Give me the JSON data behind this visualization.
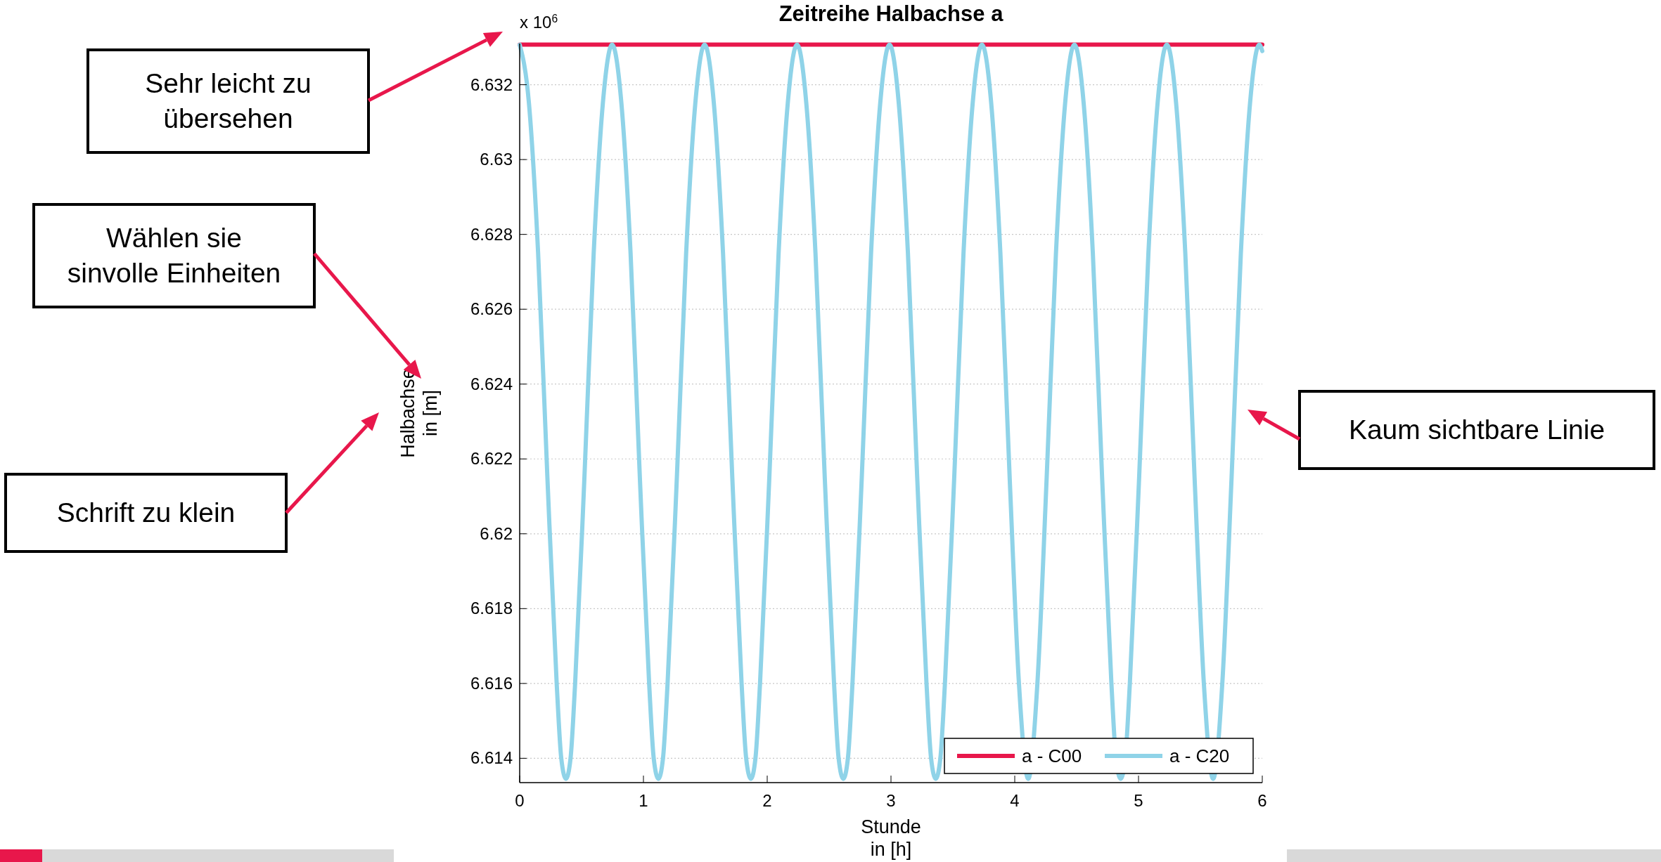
{
  "chart_data": {
    "type": "line",
    "title": "Zeitreihe Halbachse a",
    "xlabel": "Stunde\nin [h]",
    "ylabel": "Halbachse\nin [m]",
    "xlim": [
      0,
      6
    ],
    "xticks": [
      0,
      1,
      2,
      3,
      4,
      5,
      6
    ],
    "ylim": [
      6.61335,
      6.6331
    ],
    "yticks": [
      6.614,
      6.616,
      6.618,
      6.62,
      6.622,
      6.624,
      6.626,
      6.628,
      6.63,
      6.632
    ],
    "grid": "y",
    "legend": "bottom right",
    "marker": "none",
    "line_style": "solid",
    "annotations": [
      "x 10$^{6}$",
      "Sehr leicht zu\nübersehen",
      "Wählen sie\nsinvolle Einheiten",
      "Schrift zu klein",
      "Kaum sichtbare Linie"
    ],
    "series": [
      {
        "name": "a - C00",
        "color": "#e8174b",
        "x": [
          0,
          6
        ],
        "values": [
          6.63307,
          6.63307
        ]
      },
      {
        "name": "a - C20",
        "color": "#8fd3e8",
        "x": [
          0,
          0.075,
          0.149,
          0.224,
          0.299,
          0.336,
          0.374,
          0.411,
          0.448,
          0.523,
          0.598,
          0.672,
          0.747,
          0.822,
          0.896,
          0.971,
          1.046,
          1.083,
          1.121,
          1.158,
          1.195,
          1.27,
          1.345,
          1.419,
          1.494,
          1.569,
          1.643,
          1.718,
          1.793,
          1.83,
          1.868,
          1.905,
          1.942,
          2.017,
          2.092,
          2.166,
          2.241,
          2.316,
          2.39,
          2.465,
          2.54,
          2.577,
          2.615,
          2.652,
          2.689,
          2.764,
          2.839,
          2.913,
          2.988,
          3.063,
          3.137,
          3.212,
          3.287,
          3.324,
          3.362,
          3.399,
          3.436,
          3.511,
          3.586,
          3.66,
          3.735,
          3.81,
          3.884,
          3.959,
          4.034,
          4.109,
          4.183,
          4.258,
          4.333,
          4.407,
          4.482,
          4.557,
          4.631,
          4.706,
          4.781,
          4.818,
          4.856,
          4.893,
          4.93,
          5.005,
          5.08,
          5.154,
          5.229,
          5.304,
          5.378,
          5.453,
          5.528,
          5.603,
          5.677,
          5.752,
          5.827,
          5.901,
          5.976,
          6
        ],
        "values": [
          6.63307,
          6.6315,
          6.6275,
          6.6215,
          6.616,
          6.614,
          6.61345,
          6.614,
          6.616,
          6.6215,
          6.6275,
          6.6315,
          6.63307,
          6.6315,
          6.6275,
          6.6215,
          6.616,
          6.614,
          6.61345,
          6.614,
          6.616,
          6.6215,
          6.6275,
          6.6315,
          6.63307,
          6.6315,
          6.6275,
          6.6215,
          6.616,
          6.614,
          6.61345,
          6.614,
          6.616,
          6.6215,
          6.6275,
          6.6315,
          6.63307,
          6.6315,
          6.6275,
          6.6215,
          6.616,
          6.614,
          6.61345,
          6.614,
          6.616,
          6.6215,
          6.6275,
          6.6315,
          6.63307,
          6.6315,
          6.6275,
          6.6215,
          6.616,
          6.614,
          6.61345,
          6.614,
          6.616,
          6.6215,
          6.6275,
          6.6315,
          6.63307,
          6.6315,
          6.6275,
          6.6215,
          6.616,
          6.61345,
          6.616,
          6.6215,
          6.6275,
          6.6315,
          6.63307,
          6.6315,
          6.6275,
          6.6215,
          6.616,
          6.614,
          6.61345,
          6.614,
          6.616,
          6.6215,
          6.6275,
          6.6315,
          6.63307,
          6.6315,
          6.6275,
          6.6215,
          6.616,
          6.61345,
          6.616,
          6.6215,
          6.6275,
          6.6315,
          6.63307,
          6.6329
        ]
      }
    ]
  }
}
